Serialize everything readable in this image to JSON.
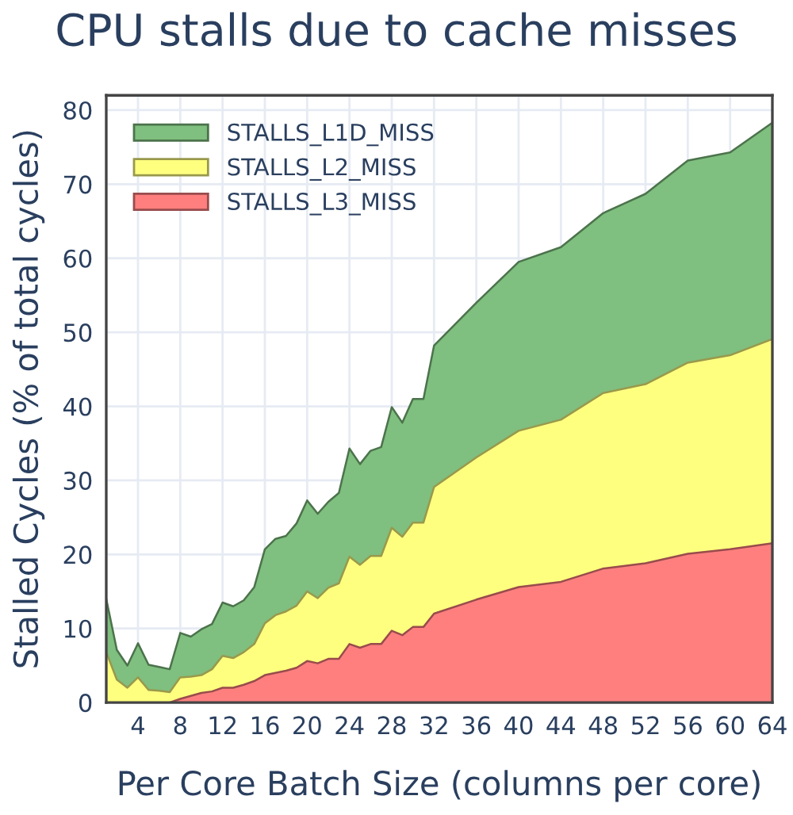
{
  "chart_data": {
    "type": "area",
    "stacked": true,
    "title": "CPU stalls due to cache misses",
    "xlabel": "Per Core Batch Size (columns per core)",
    "ylabel": "Stalled Cycles (% of total cycles)",
    "x": [
      1,
      2,
      3,
      4,
      5,
      6,
      7,
      8,
      9,
      10,
      11,
      12,
      13,
      14,
      15,
      16,
      17,
      18,
      19,
      20,
      21,
      22,
      23,
      24,
      25,
      26,
      27,
      28,
      29,
      30,
      31,
      32,
      36,
      40,
      44,
      48,
      52,
      56,
      60,
      64
    ],
    "series": [
      {
        "name": "STALLS_L3_MISS",
        "color": "#ff7f7f",
        "values": [
          0,
          0,
          0,
          0,
          0,
          0,
          0,
          0.5,
          0.9,
          1.3,
          1.5,
          2.0,
          2.0,
          2.4,
          2.9,
          3.7,
          4.0,
          4.3,
          4.7,
          5.6,
          5.3,
          5.9,
          5.9,
          7.9,
          7.4,
          7.9,
          7.9,
          9.7,
          9.1,
          10.2,
          10.2,
          12.0,
          13.9,
          15.6,
          16.3,
          18.1,
          18.8,
          20.1,
          20.7,
          21.5
        ]
      },
      {
        "name": "STALLS_L2_MISS",
        "color": "#ffff7f",
        "values": [
          6.8,
          3.1,
          2.0,
          3.4,
          1.7,
          1.6,
          1.4,
          2.9,
          2.6,
          2.4,
          3.0,
          4.3,
          4.0,
          4.4,
          5.0,
          7.0,
          7.8,
          8.0,
          8.4,
          9.4,
          8.8,
          9.6,
          10.2,
          11.8,
          11.2,
          11.9,
          11.9,
          13.9,
          13.3,
          14.1,
          14.1,
          17.1,
          19.2,
          21.1,
          21.9,
          23.7,
          24.2,
          25.8,
          26.2,
          27.6
        ]
      },
      {
        "name": "STALLS_L1D_MISS",
        "color": "#7fbf7f",
        "values": [
          7.2,
          4.0,
          3.0,
          4.6,
          3.4,
          3.2,
          3.1,
          6.0,
          5.4,
          6.2,
          6.1,
          7.2,
          7.0,
          7.0,
          7.7,
          10.0,
          10.3,
          10.2,
          11.1,
          12.3,
          11.4,
          11.6,
          12.2,
          14.6,
          13.6,
          14.2,
          14.7,
          16.3,
          15.4,
          16.7,
          16.7,
          19.1,
          20.9,
          22.8,
          23.3,
          24.3,
          25.7,
          27.3,
          27.4,
          29.2
        ]
      }
    ],
    "xlim": [
      1,
      64
    ],
    "xticks": [
      4,
      8,
      12,
      16,
      20,
      24,
      28,
      32,
      36,
      40,
      44,
      48,
      52,
      56,
      60,
      64
    ],
    "ylim": [
      0,
      82
    ],
    "yticks": [
      0,
      10,
      20,
      30,
      40,
      50,
      60,
      70,
      80
    ],
    "grid": true,
    "legend": "top left"
  }
}
